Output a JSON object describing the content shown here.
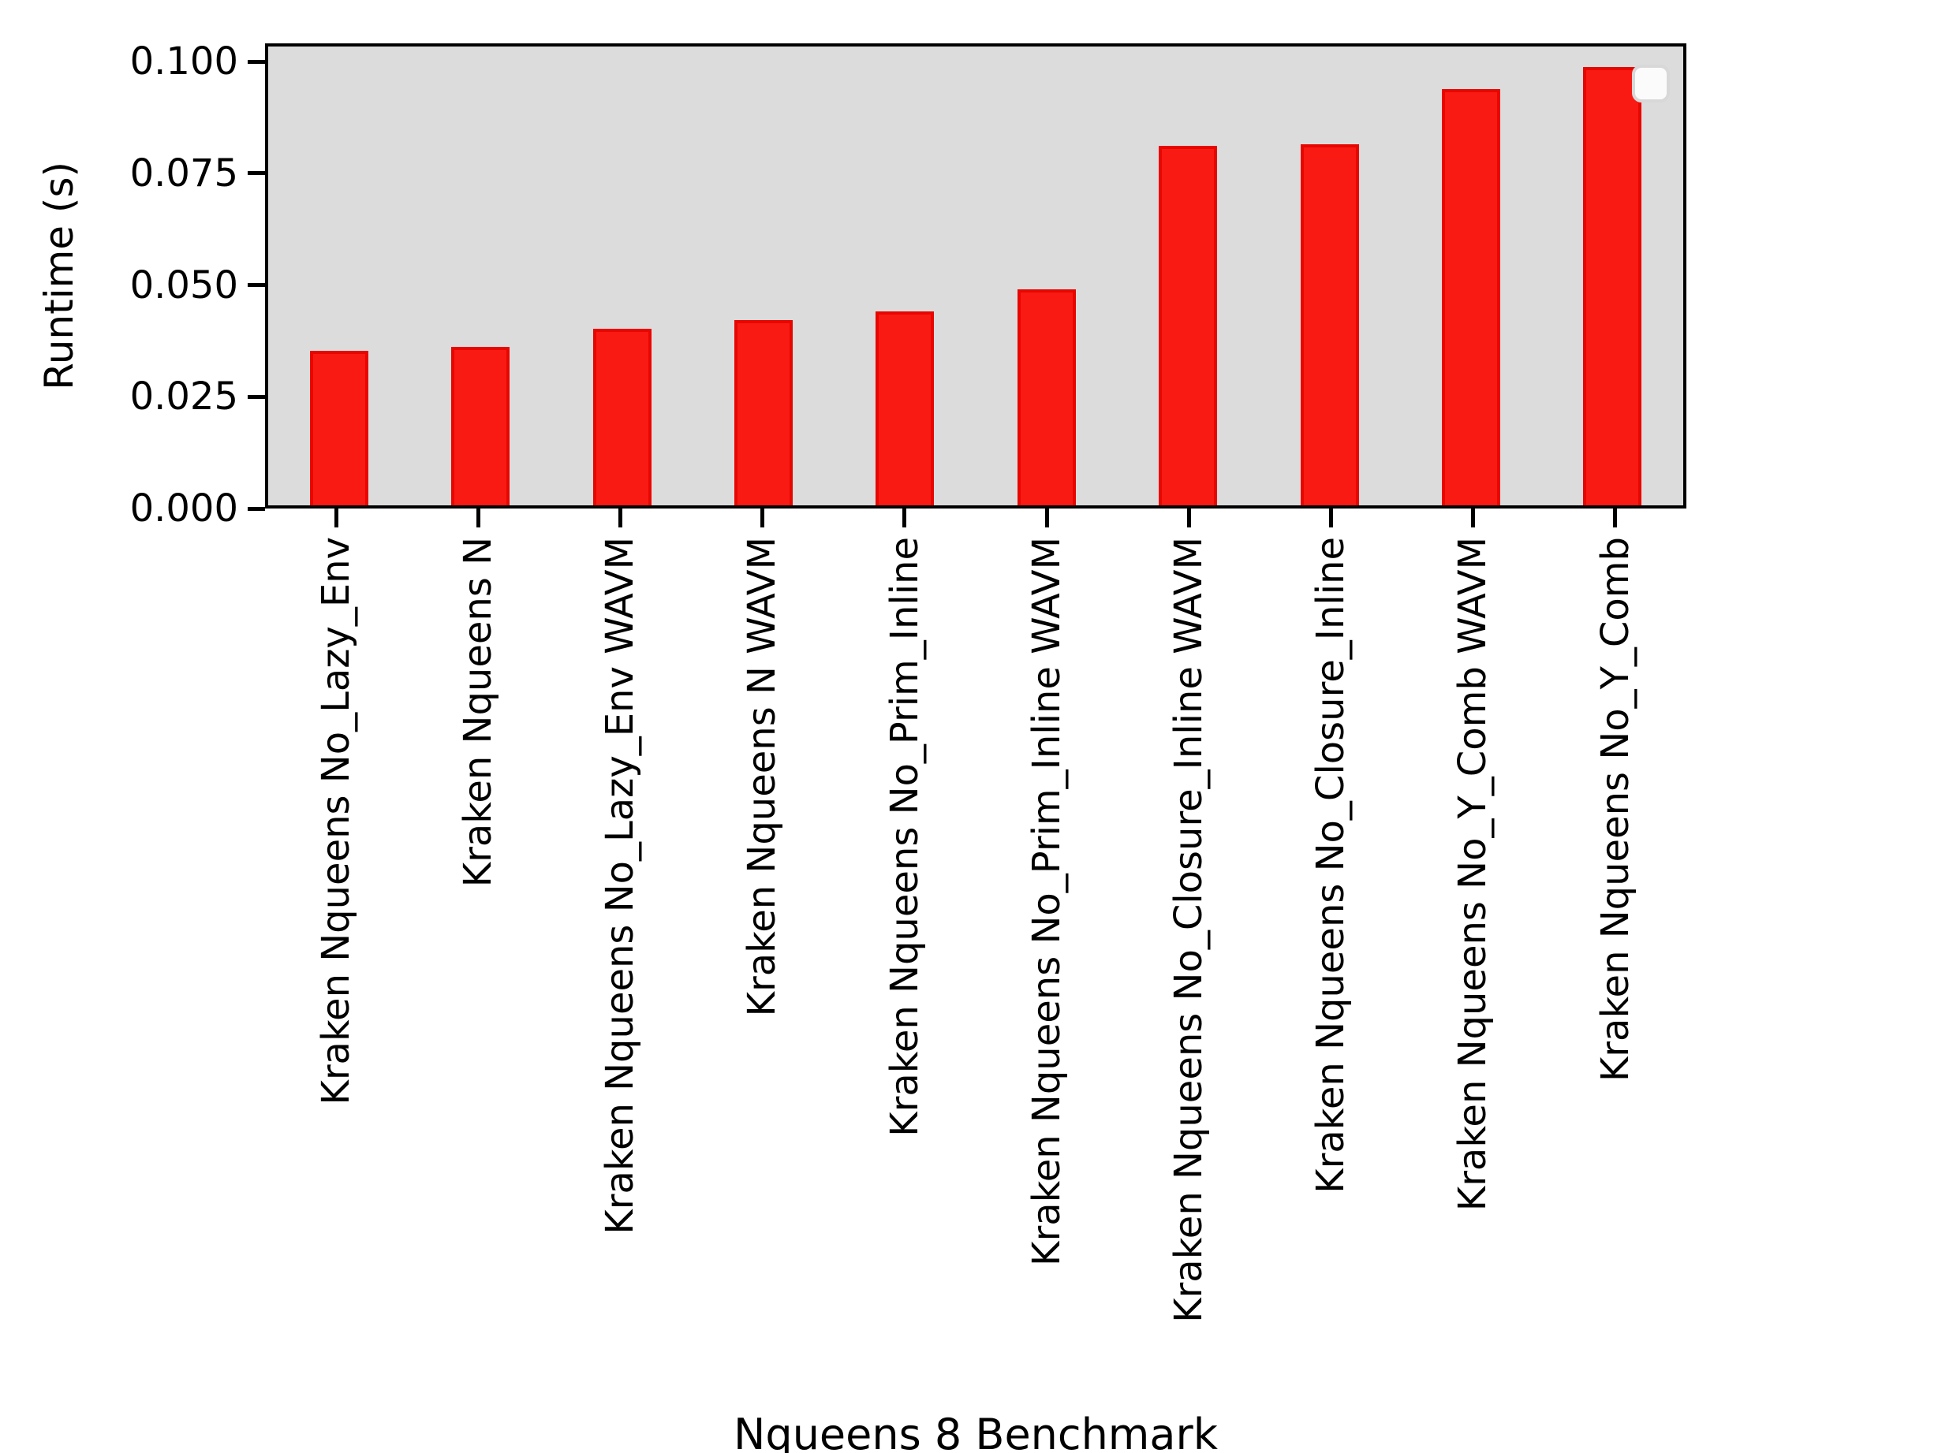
{
  "chart_data": {
    "type": "bar",
    "title": "",
    "xlabel": "Nqueens 8 Benchmark",
    "ylabel": "Runtime (s)",
    "categories": [
      "Kraken Nqueens No_Lazy_Env",
      "Kraken Nqueens N",
      "Kraken Nqueens No_Lazy_Env WAVM",
      "Kraken Nqueens N WAVM",
      "Kraken Nqueens No_Prim_Inline",
      "Kraken Nqueens No_Prim_Inline WAVM",
      "Kraken Nqueens No_Closure_Inline WAVM",
      "Kraken Nqueens No_Closure_Inline",
      "Kraken Nqueens No_Y_Comb WAVM",
      "Kraken Nqueens No_Y_Comb"
    ],
    "values": [
      0.035,
      0.036,
      0.04,
      0.042,
      0.044,
      0.049,
      0.0815,
      0.082,
      0.0945,
      0.0995
    ],
    "ylim": [
      0,
      0.1041
    ],
    "yticks": [
      0.1,
      0.075,
      0.05,
      0.025,
      0.0
    ],
    "ytick_labels": [
      "0.100",
      "0.075",
      "0.050",
      "0.025",
      "0.000"
    ],
    "grid": false,
    "legend": {
      "position": "upper right",
      "entries": []
    },
    "colors": {
      "bar_fill": "#fa1a14",
      "bar_edge": "#e80600",
      "plot_bg": "#dcdcdc",
      "figure_bg": "#ffffff",
      "axis": "#000000"
    }
  }
}
